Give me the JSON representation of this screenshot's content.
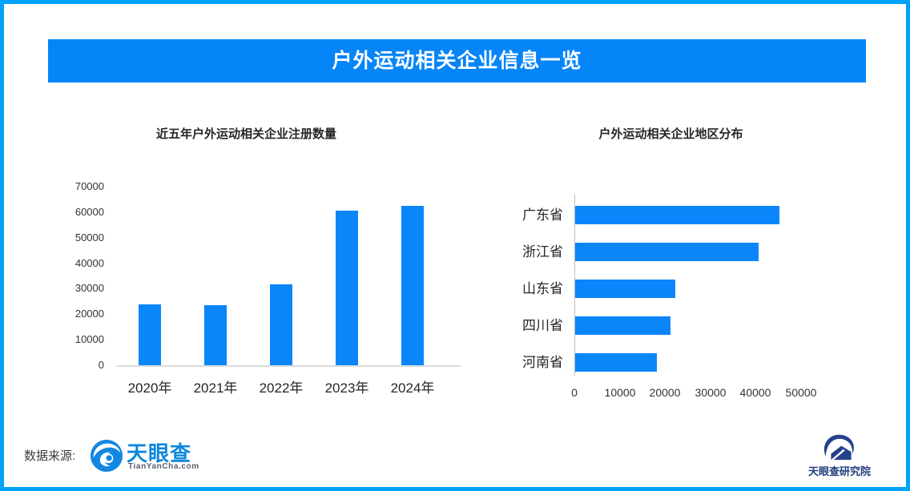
{
  "page": {
    "border_color": "#00A2FA",
    "background_color": "#FFFFFF"
  },
  "header": {
    "title": "户外运动相关企业信息一览",
    "bg_color": "#0585F8",
    "text_color": "#FFFFFF"
  },
  "chart_data": [
    {
      "type": "bar",
      "title": "近五年户外运动相关企业注册数量",
      "categories": [
        "2020年",
        "2021年",
        "2022年",
        "2023年",
        "2024年"
      ],
      "values": [
        24000,
        23500,
        31800,
        60500,
        62500
      ],
      "bar_color": "#0A86FA",
      "xlabel": "",
      "ylabel": "",
      "ylim": [
        0,
        70000
      ],
      "yticks": [
        0,
        10000,
        20000,
        30000,
        40000,
        50000,
        60000,
        70000
      ],
      "grid": false,
      "legend": false
    },
    {
      "type": "bar-horizontal",
      "title": "户外运动相关企业地区分布",
      "categories": [
        "广东省",
        "浙江省",
        "山东省",
        "四川省",
        "河南省"
      ],
      "values": [
        45000,
        40500,
        22000,
        21000,
        18000
      ],
      "bar_color": "#0A86FA",
      "xlabel": "",
      "ylabel": "",
      "xlim": [
        0,
        50000
      ],
      "xticks": [
        0,
        10000,
        20000,
        30000,
        40000,
        50000
      ],
      "grid": false,
      "legend": false
    }
  ],
  "footer": {
    "source_label": "数据来源:",
    "logo": {
      "icon": "tianyancha-eye-icon",
      "name": "天眼查",
      "subtext": "TianYanCha.com",
      "name_color": "#0C86DC"
    }
  },
  "corner_logo": {
    "icon": "tianyancha-research-icon",
    "name": "天眼查研究院",
    "color": "#233E7E"
  }
}
